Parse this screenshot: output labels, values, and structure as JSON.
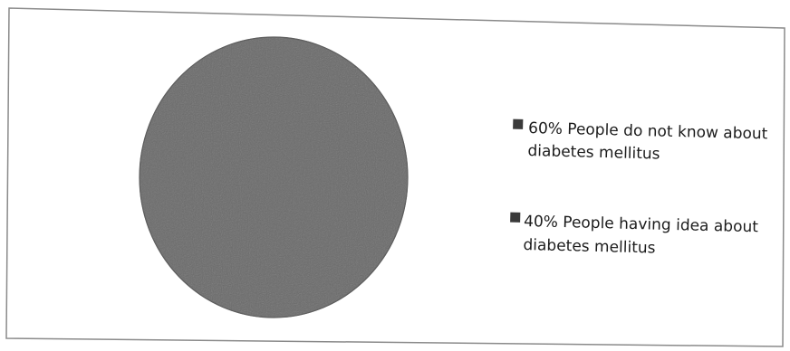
{
  "chart_data": {
    "type": "pie",
    "title": "",
    "slices": [
      {
        "label_lines": [
          "60% People do not know about",
          "diabetes mellitus"
        ],
        "value": 60,
        "color": "#6b6b6b"
      },
      {
        "label_lines": [
          "40% People having idea about",
          "diabetes mellitus"
        ],
        "value": 40,
        "color": "#6b6b6b"
      }
    ],
    "legend_position": "right",
    "colors": {
      "background": "#ffffff",
      "border": "#8a8a8a",
      "pie_fill": "#6b6b6b",
      "legend_marker": "#3a3a3a",
      "text": "#1c1c1c"
    }
  }
}
